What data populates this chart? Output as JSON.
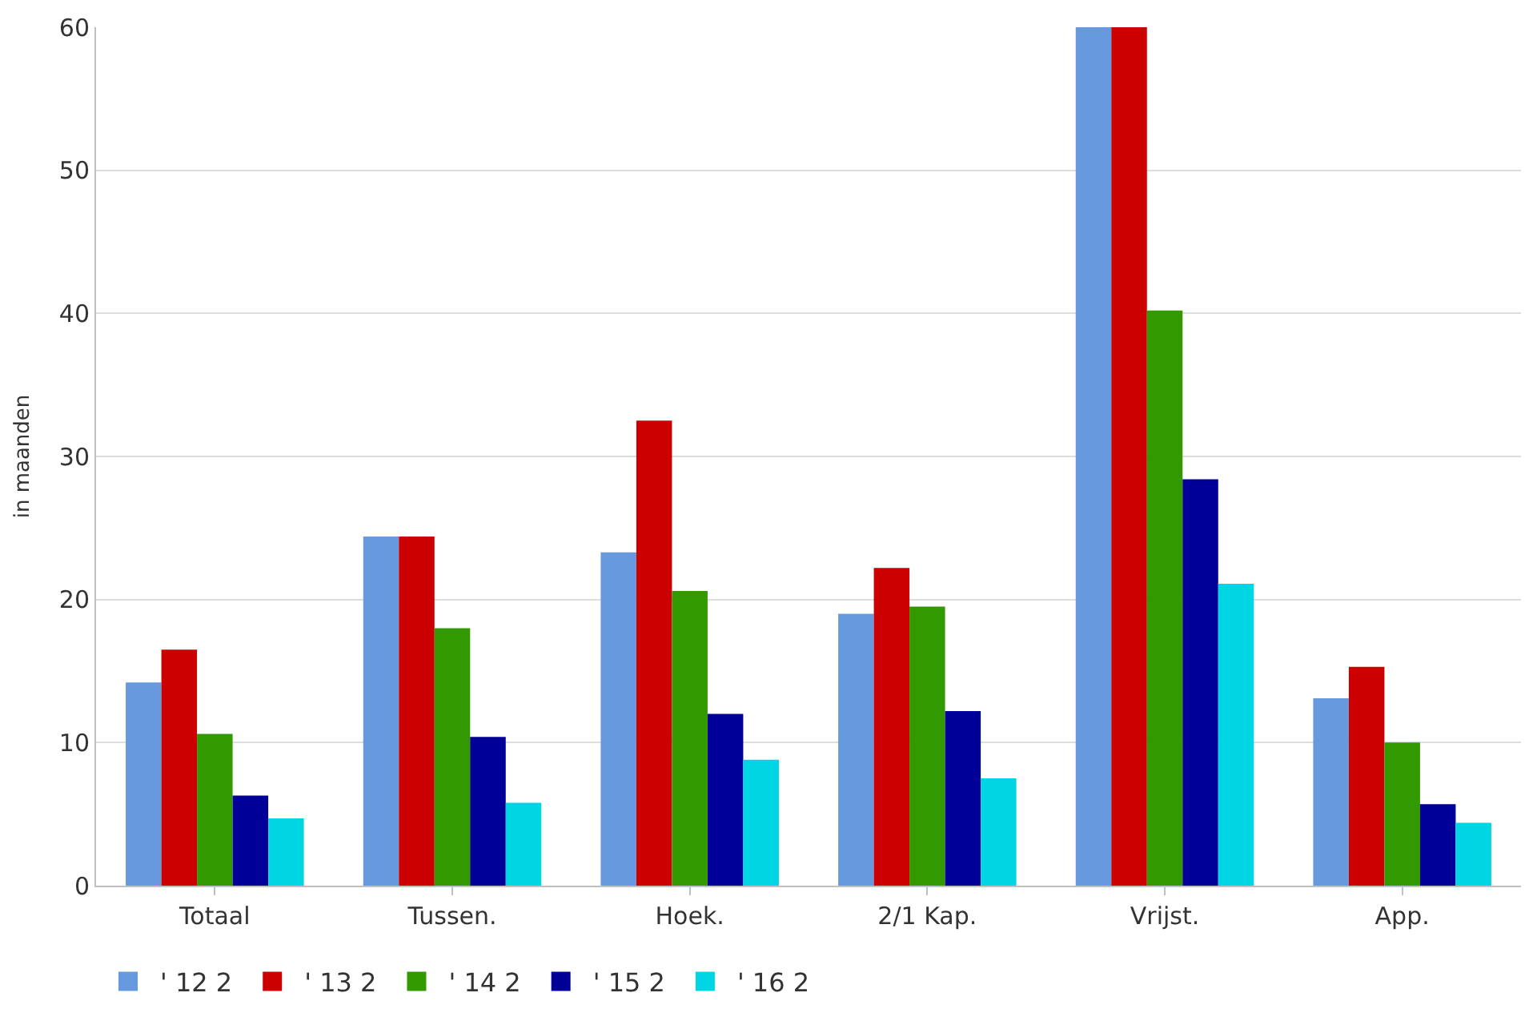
{
  "chart_data": {
    "type": "bar",
    "ylabel": "in maanden",
    "categories": [
      "Totaal",
      "Tussen.",
      "Hoek.",
      "2/1 Kap.",
      "Vrijst.",
      "App."
    ],
    "series": [
      {
        "name": "' 12 2",
        "color": "#6699dd",
        "values": [
          14.2,
          24.4,
          23.3,
          19.0,
          60,
          13.1
        ]
      },
      {
        "name": "' 13 2",
        "color": "#cc0000",
        "values": [
          16.5,
          24.4,
          32.5,
          22.2,
          60,
          15.3
        ]
      },
      {
        "name": "' 14 2",
        "color": "#339900",
        "values": [
          10.6,
          18.0,
          20.6,
          19.5,
          40.2,
          10.0
        ]
      },
      {
        "name": "' 15 2",
        "color": "#000099",
        "values": [
          6.3,
          10.4,
          12.0,
          12.2,
          28.4,
          5.7
        ]
      },
      {
        "name": "' 16 2",
        "color": "#00d5e3",
        "values": [
          4.7,
          5.8,
          8.8,
          7.5,
          21.1,
          4.4
        ]
      }
    ],
    "ylim": [
      0,
      60
    ],
    "yticks": [
      0,
      10,
      20,
      30,
      40,
      50,
      60
    ],
    "grid": "y",
    "legend": "bottom left"
  }
}
